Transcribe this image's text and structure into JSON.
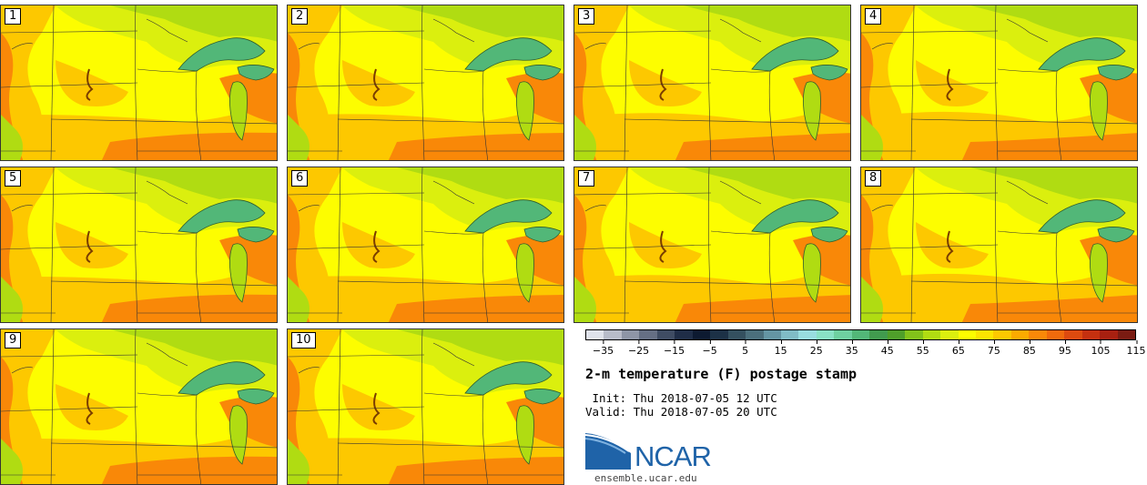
{
  "title": "2-m temperature (F) postage stamp",
  "init_line": " Init: Thu 2018-07-05 12 UTC",
  "valid_line": "Valid: Thu 2018-07-05 20 UTC",
  "logo_text": "NCAR",
  "website": "ensemble.ucar.edu",
  "members": [
    "1",
    "2",
    "3",
    "4",
    "5",
    "6",
    "7",
    "8",
    "9",
    "10"
  ],
  "colorbar": {
    "tick_labels": [
      "−35",
      "−25",
      "−15",
      "−5",
      "5",
      "15",
      "25",
      "35",
      "45",
      "55",
      "65",
      "75",
      "85",
      "95",
      "105",
      "115"
    ],
    "colors": [
      "#e0e3eb",
      "#b8bcc9",
      "#8e95a6",
      "#656f84",
      "#3f4c63",
      "#1f2d47",
      "#0d1a31",
      "#1c3146",
      "#34505f",
      "#4b6f7c",
      "#6495a3",
      "#80bcc6",
      "#98dde0",
      "#89e1c5",
      "#6ed0a0",
      "#52b778",
      "#419b4e",
      "#4f9f2a",
      "#82c21a",
      "#b0dc12",
      "#dbef0e",
      "#fdfd00",
      "#fde400",
      "#fdc800",
      "#fcaa00",
      "#f98808",
      "#f06a0c",
      "#dd4a0f",
      "#c5300f",
      "#a82010",
      "#7a1b12"
    ]
  },
  "colors": {
    "logo_blue": "#1f63a8",
    "land_hot": "#f98808",
    "land_warm": "#fdc800",
    "land_mild": "#fdfd00",
    "land_cool": "#dbef0e",
    "land_cooler": "#b0dc12",
    "lake": "#52b778"
  }
}
